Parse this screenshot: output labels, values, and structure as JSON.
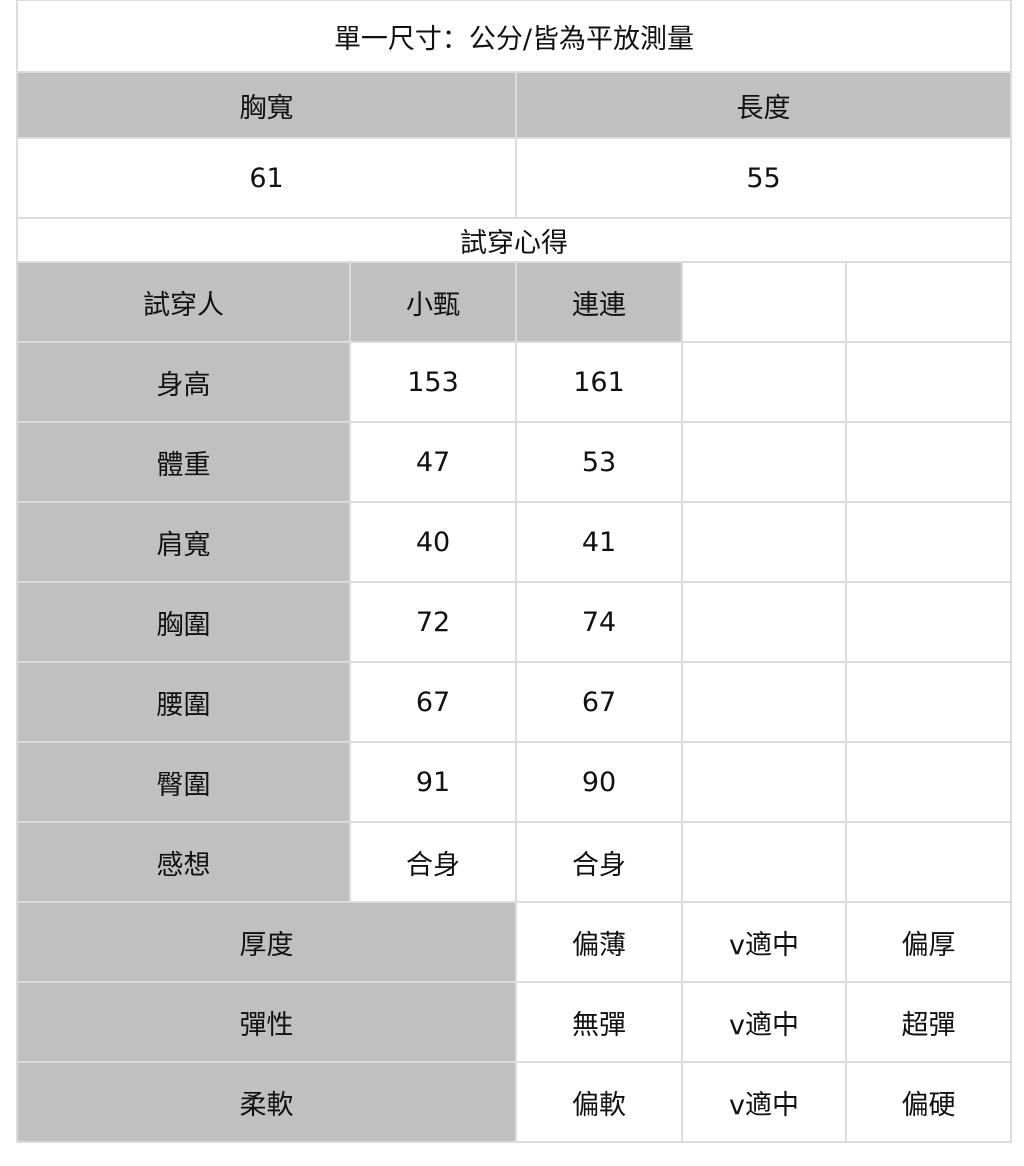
{
  "title": "單一尺寸：公分/皆為平放測量",
  "measure_headers": [
    "胸寬",
    "長度"
  ],
  "measure_values": [
    "61",
    "55"
  ],
  "section_title": "試穿心得",
  "fit_table": {
    "header": [
      "試穿人",
      "小甄",
      "連連",
      "",
      ""
    ],
    "rows": [
      {
        "label": "身高",
        "values": [
          "153",
          "161"
        ]
      },
      {
        "label": "體重",
        "values": [
          "47",
          "53"
        ]
      },
      {
        "label": "肩寬",
        "values": [
          "40",
          "41"
        ]
      },
      {
        "label": "胸圍",
        "values": [
          "72",
          "74"
        ]
      },
      {
        "label": "腰圍",
        "values": [
          "67",
          "67"
        ]
      },
      {
        "label": "臀圍",
        "values": [
          "91",
          "90"
        ]
      },
      {
        "label": "感想",
        "values": [
          "合身",
          "合身"
        ]
      }
    ]
  },
  "attributes": [
    {
      "label": "厚度",
      "options": [
        "偏薄",
        "v適中",
        "偏厚"
      ]
    },
    {
      "label": "彈性",
      "options": [
        "無彈",
        "v適中",
        "超彈"
      ]
    },
    {
      "label": "柔軟",
      "options": [
        "偏軟",
        "v適中",
        "偏硬"
      ]
    }
  ],
  "colors": {
    "header_bg": "#c0c0c0",
    "border": "#dcdcdc"
  }
}
